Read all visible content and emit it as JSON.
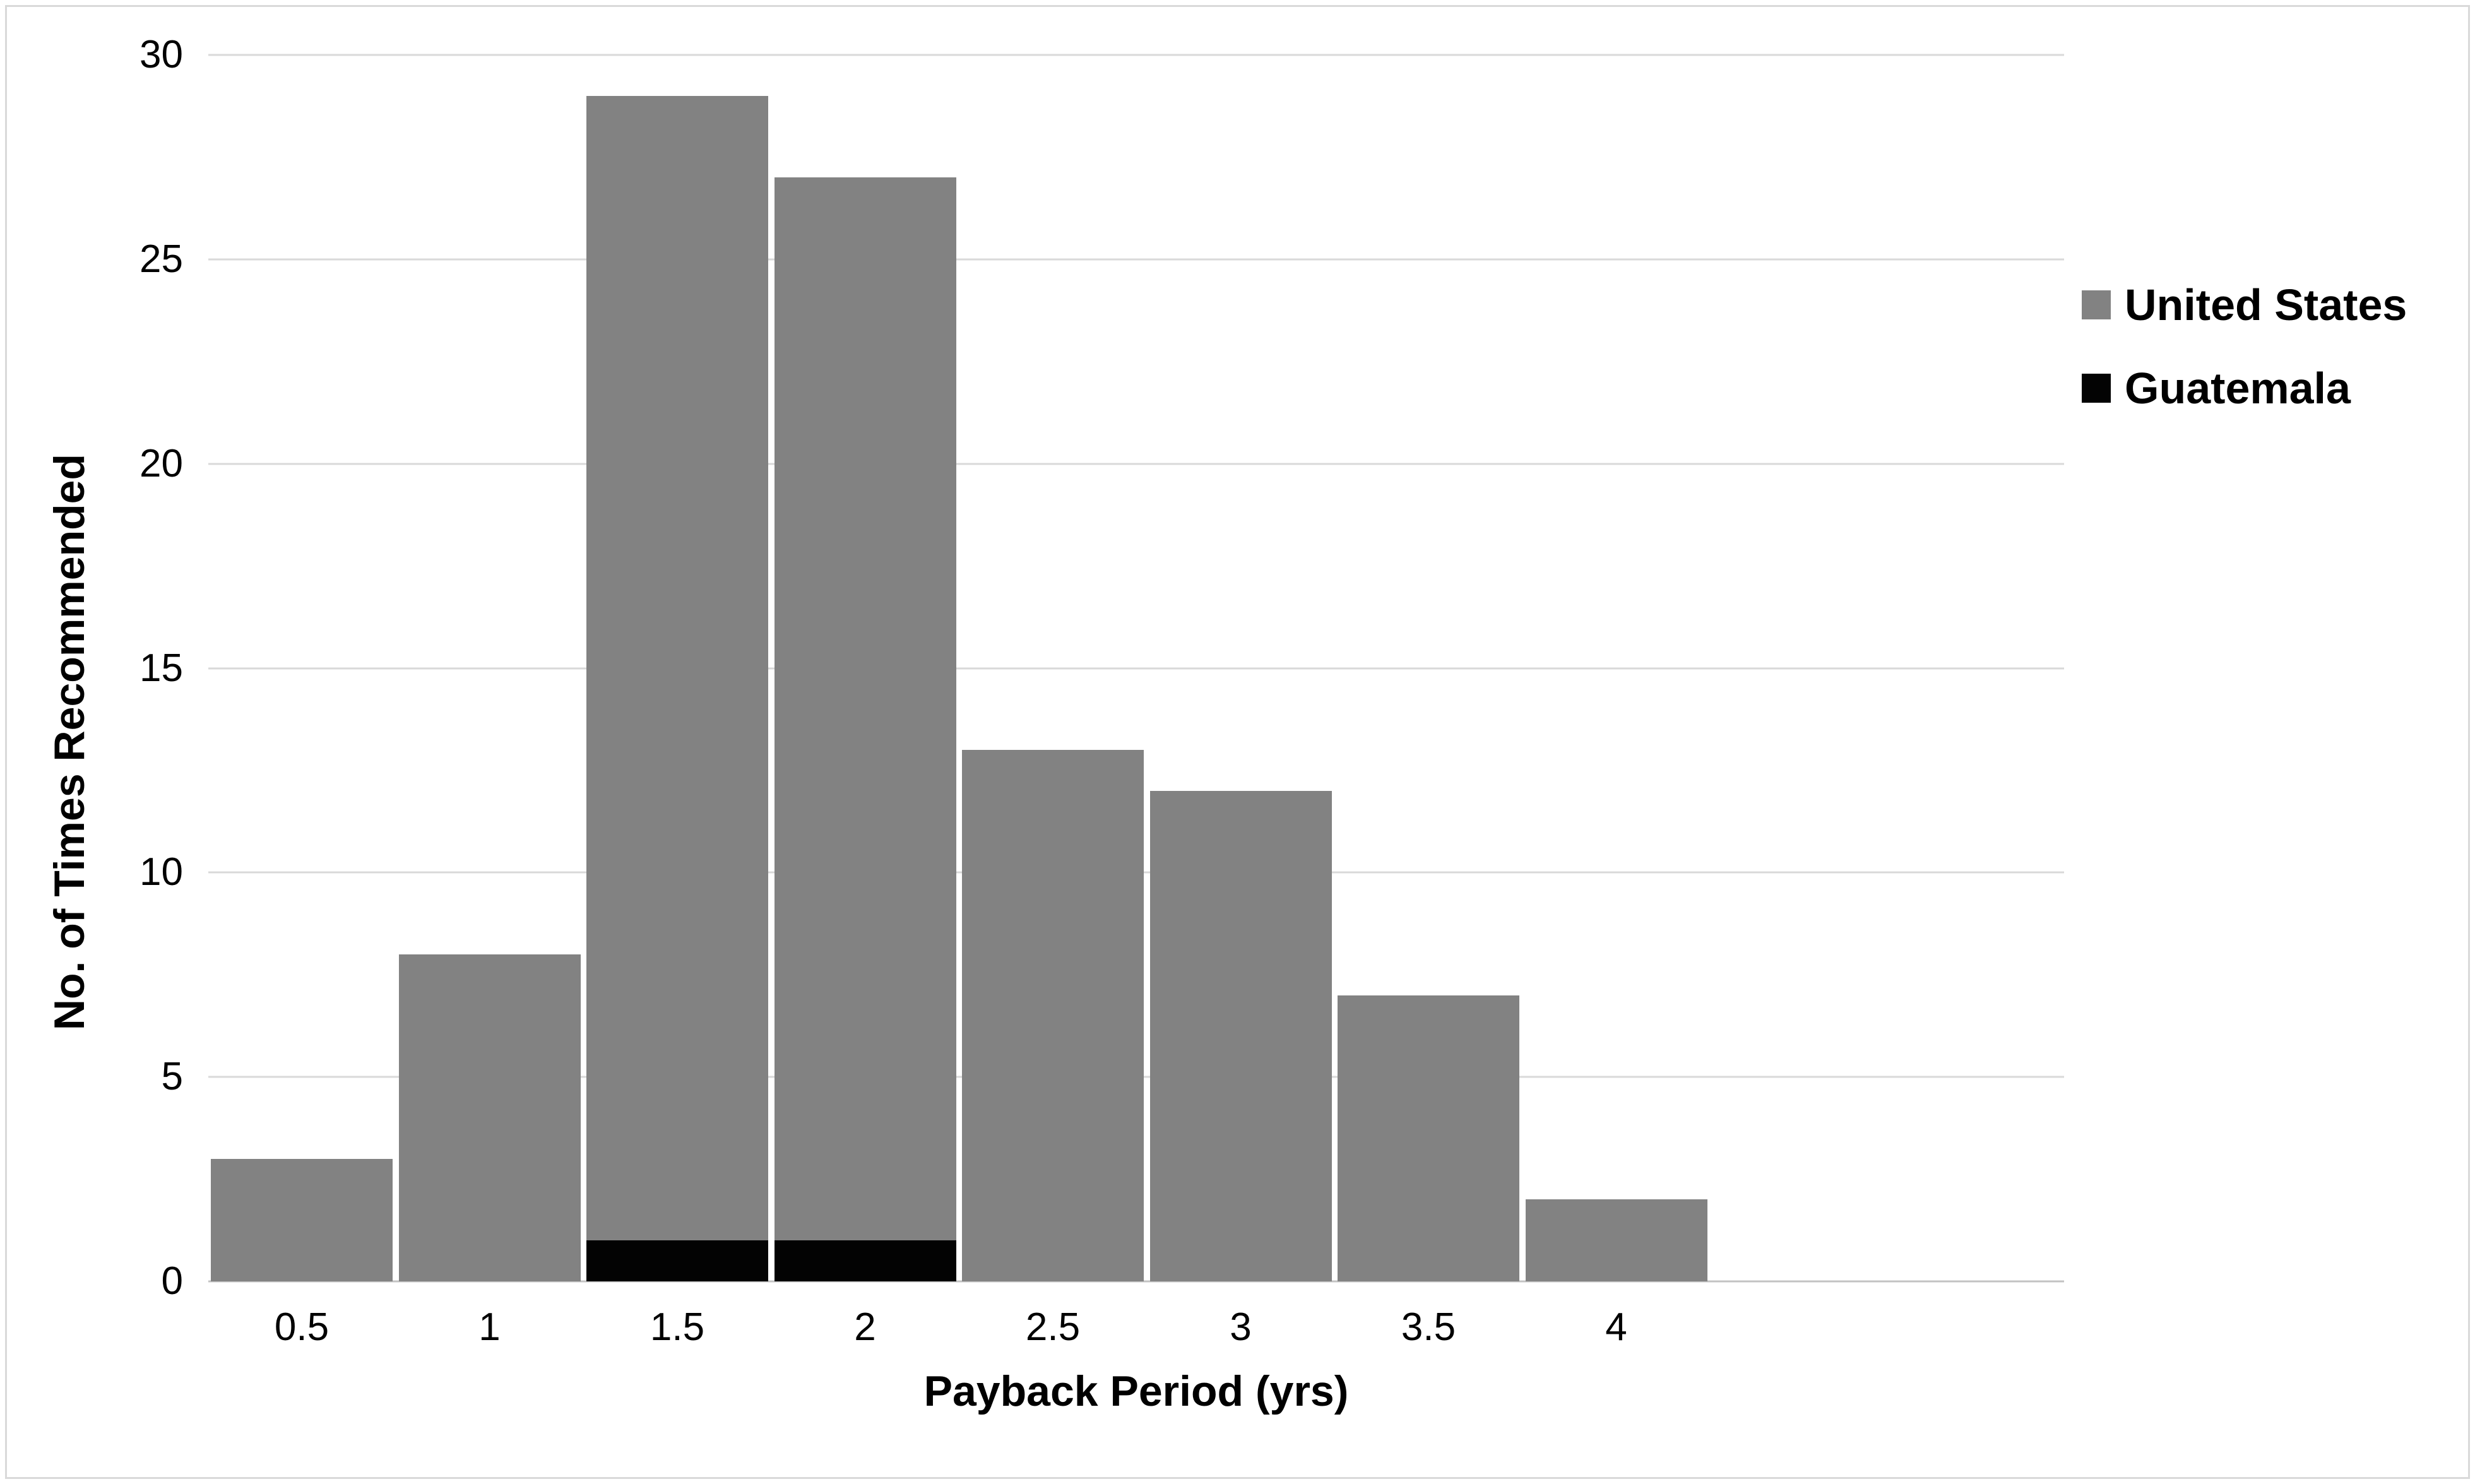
{
  "figure": {
    "background": "#ffffff",
    "border_color": "#d9d9d9"
  },
  "chart_data": {
    "type": "bar",
    "stacking": "stacked",
    "title": "",
    "xlabel": "Payback Period (yrs)",
    "ylabel": "No. of Times Recommended",
    "categories": [
      "0.5",
      "1",
      "1.5",
      "2",
      "2.5",
      "3",
      "3.5",
      "4"
    ],
    "series": [
      {
        "name": "United States",
        "color": "#828282",
        "values": [
          3,
          8,
          28,
          26,
          13,
          12,
          7,
          2
        ]
      },
      {
        "name": "Guatemala",
        "color": "#030303",
        "values": [
          0,
          0,
          1,
          1,
          0,
          0,
          0,
          0
        ]
      }
    ],
    "bar_totals": [
      3,
      8,
      29,
      27,
      13,
      12,
      7,
      2
    ],
    "stack_bottom_series": "Guatemala",
    "ylim": [
      0,
      30
    ],
    "yticks": [
      0,
      5,
      10,
      15,
      20,
      25,
      30
    ],
    "grid": true,
    "gridline_color": "#d9d9d9",
    "axis_line_color": "#c3c3c3",
    "legend_position": "right"
  }
}
